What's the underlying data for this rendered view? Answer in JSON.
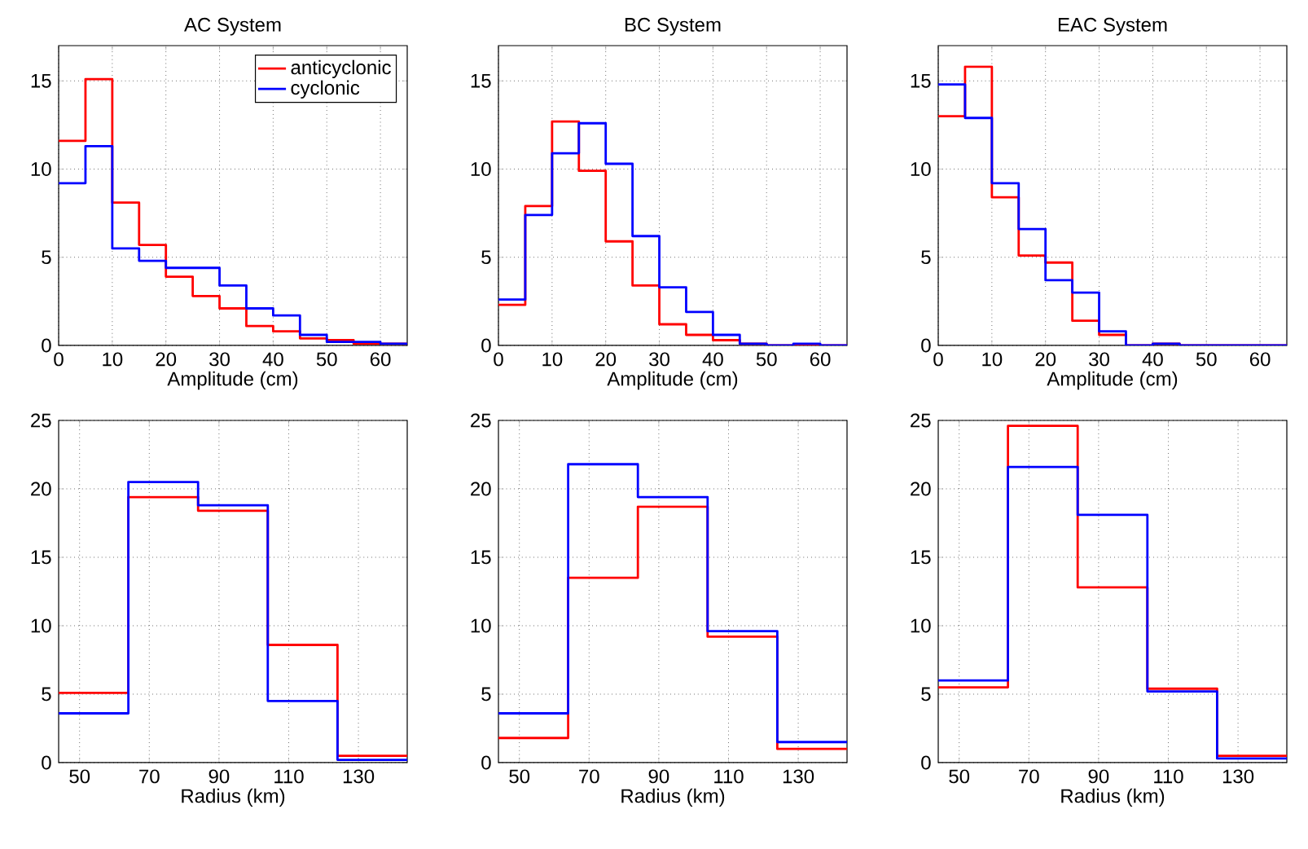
{
  "chart_data": [
    {
      "type": "histogram",
      "title": "AC System",
      "xlabel": "Amplitude (cm)",
      "bins": [
        0,
        5,
        10,
        15,
        20,
        25,
        30,
        35,
        40,
        45,
        50,
        55,
        60,
        65
      ],
      "xlim": [
        0,
        65
      ],
      "ylim": [
        0,
        17
      ],
      "xticks": [
        0,
        10,
        20,
        30,
        40,
        50,
        60
      ],
      "yticks": [
        0,
        5,
        10,
        15
      ],
      "grid": true,
      "legend": "top right",
      "series": [
        {
          "name": "anticyclonic",
          "color": "#ff0000",
          "values": [
            11.6,
            15.1,
            8.1,
            5.7,
            3.9,
            2.8,
            2.1,
            1.1,
            0.8,
            0.4,
            0.3,
            0.1,
            0.1
          ]
        },
        {
          "name": "cyclonic",
          "color": "#0000ff",
          "values": [
            9.2,
            11.3,
            5.5,
            4.8,
            4.4,
            4.4,
            3.4,
            2.1,
            1.7,
            0.6,
            0.2,
            0.2,
            0.1
          ]
        }
      ]
    },
    {
      "type": "histogram",
      "title": "BC System",
      "xlabel": "Amplitude (cm)",
      "bins": [
        0,
        5,
        10,
        15,
        20,
        25,
        30,
        35,
        40,
        45,
        50,
        55,
        60,
        65
      ],
      "xlim": [
        0,
        65
      ],
      "ylim": [
        0,
        17
      ],
      "xticks": [
        0,
        10,
        20,
        30,
        40,
        50,
        60
      ],
      "yticks": [
        0,
        5,
        10,
        15
      ],
      "grid": true,
      "series": [
        {
          "color": "#ff0000",
          "values": [
            2.3,
            7.9,
            12.7,
            9.9,
            5.9,
            3.4,
            1.2,
            0.6,
            0.3,
            0.1,
            0.0,
            0.0,
            0.0
          ]
        },
        {
          "color": "#0000ff",
          "values": [
            2.6,
            7.4,
            10.9,
            12.6,
            10.3,
            6.2,
            3.3,
            1.9,
            0.6,
            0.1,
            0.0,
            0.1,
            0.0
          ]
        }
      ]
    },
    {
      "type": "histogram",
      "title": "EAC System",
      "xlabel": "Amplitude (cm)",
      "bins": [
        0,
        5,
        10,
        15,
        20,
        25,
        30,
        35,
        40,
        45,
        50,
        55,
        60,
        65
      ],
      "xlim": [
        0,
        65
      ],
      "ylim": [
        0,
        17
      ],
      "xticks": [
        0,
        10,
        20,
        30,
        40,
        50,
        60
      ],
      "yticks": [
        0,
        5,
        10,
        15
      ],
      "grid": true,
      "series": [
        {
          "color": "#ff0000",
          "values": [
            13.0,
            15.8,
            8.4,
            5.1,
            4.7,
            1.4,
            0.6,
            0.0,
            0.1,
            0.0,
            0.0,
            0.0,
            0.0
          ]
        },
        {
          "color": "#0000ff",
          "values": [
            14.8,
            12.9,
            9.2,
            6.6,
            3.7,
            3.0,
            0.8,
            0.0,
            0.1,
            0.0,
            0.0,
            0.0,
            0.0
          ]
        }
      ]
    },
    {
      "type": "histogram",
      "xlabel": "Radius (km)",
      "bins": [
        44,
        64,
        84,
        104,
        124,
        144
      ],
      "xlim": [
        44,
        144
      ],
      "ylim": [
        0,
        25
      ],
      "xticks": [
        50,
        70,
        90,
        110,
        130
      ],
      "yticks": [
        0,
        5,
        10,
        15,
        20,
        25
      ],
      "grid": true,
      "series": [
        {
          "color": "#ff0000",
          "values": [
            5.1,
            19.4,
            18.4,
            8.6,
            0.5
          ]
        },
        {
          "color": "#0000ff",
          "values": [
            3.6,
            20.5,
            18.8,
            4.5,
            0.2
          ]
        }
      ]
    },
    {
      "type": "histogram",
      "xlabel": "Radius (km)",
      "bins": [
        44,
        64,
        84,
        104,
        124,
        144
      ],
      "xlim": [
        44,
        144
      ],
      "ylim": [
        0,
        25
      ],
      "xticks": [
        50,
        70,
        90,
        110,
        130
      ],
      "yticks": [
        0,
        5,
        10,
        15,
        20,
        25
      ],
      "grid": true,
      "series": [
        {
          "color": "#ff0000",
          "values": [
            1.8,
            13.5,
            18.7,
            9.2,
            1.0
          ]
        },
        {
          "color": "#0000ff",
          "values": [
            3.6,
            21.8,
            19.4,
            9.6,
            1.5
          ]
        }
      ]
    },
    {
      "type": "histogram",
      "xlabel": "Radius (km)",
      "bins": [
        44,
        64,
        84,
        104,
        124,
        144
      ],
      "xlim": [
        44,
        144
      ],
      "ylim": [
        0,
        25
      ],
      "xticks": [
        50,
        70,
        90,
        110,
        130
      ],
      "yticks": [
        0,
        5,
        10,
        15,
        20,
        25
      ],
      "grid": true,
      "series": [
        {
          "color": "#ff0000",
          "values": [
            5.5,
            24.6,
            12.8,
            5.4,
            0.5
          ]
        },
        {
          "color": "#0000ff",
          "values": [
            6.0,
            21.6,
            18.1,
            5.2,
            0.3
          ]
        }
      ]
    }
  ]
}
